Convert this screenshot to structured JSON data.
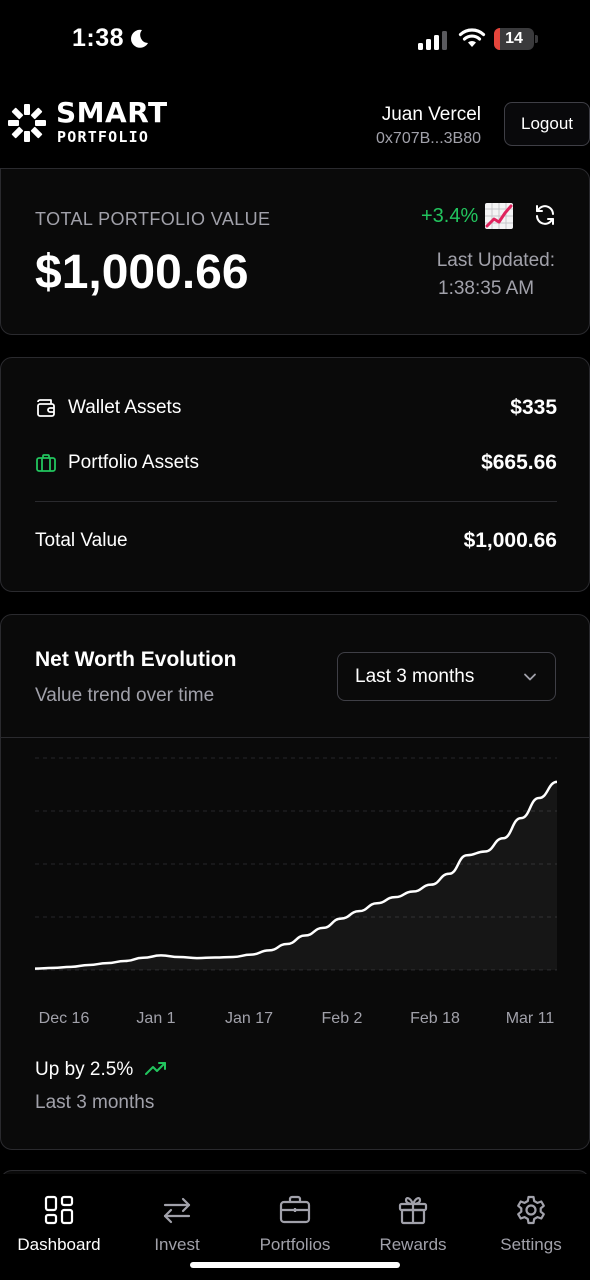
{
  "status_bar": {
    "time": "1:38",
    "battery_level": "14",
    "battery_fraction": 0.14,
    "battery_color": "#e5453b"
  },
  "header": {
    "logo_line1": "SMART",
    "logo_line2": "PORTFOLIO",
    "user_name": "Juan Vercel",
    "wallet_address": "0x707B...3B80",
    "logout_label": "Logout"
  },
  "portfolio_summary": {
    "label": "TOTAL PORTFOLIO VALUE",
    "value": "$1,000.66",
    "change": "+3.4%",
    "change_icon": "📈",
    "change_color": "#22c55e",
    "last_updated_label": "Last Updated:",
    "last_updated_time": "1:38:35 AM"
  },
  "assets": {
    "wallet": {
      "label": "Wallet Assets",
      "value": "$335",
      "icon": "wallet-icon"
    },
    "portfolio": {
      "label": "Portfolio Assets",
      "value": "$665.66",
      "icon": "briefcase-icon",
      "icon_color": "#22c55e"
    },
    "total": {
      "label": "Total Value",
      "value": "$1,000.66"
    }
  },
  "net_worth": {
    "title": "Net Worth Evolution",
    "subtitle": "Value trend over time",
    "range_selected": "Last 3 months",
    "trend_text": "Up by 2.5%",
    "trend_period": "Last 3 months",
    "trend_color": "#22c55e"
  },
  "chart_data": {
    "type": "area",
    "x_tick_labels": [
      "Dec 16",
      "Jan 1",
      "Jan 17",
      "Feb 2",
      "Feb 18",
      "Mar 11"
    ],
    "x": [
      "Dec 16",
      "Dec 19",
      "Dec 22",
      "Dec 25",
      "Dec 28",
      "Dec 31",
      "Jan 3",
      "Jan 6",
      "Jan 9",
      "Jan 12",
      "Jan 15",
      "Jan 18",
      "Jan 21",
      "Jan 24",
      "Jan 27",
      "Jan 30",
      "Feb 2",
      "Feb 5",
      "Feb 8",
      "Feb 11",
      "Feb 14",
      "Feb 17",
      "Feb 20",
      "Feb 23",
      "Feb 26",
      "Mar 1",
      "Mar 4",
      "Mar 7",
      "Mar 10",
      "Mar 13"
    ],
    "values": [
      0.5,
      0.8,
      1.2,
      1.9,
      2.6,
      3.4,
      4.6,
      5.5,
      4.9,
      4.5,
      4.7,
      4.9,
      5.8,
      7.4,
      9.8,
      13.0,
      15.9,
      19.4,
      22.2,
      25.2,
      27.5,
      29.6,
      32.2,
      36.3,
      43.3,
      44.7,
      49.7,
      57.3,
      64.9,
      71.0
    ],
    "ylim": [
      0,
      80
    ],
    "grid": true,
    "grid_style": "dashed horizontal",
    "legend": "none",
    "line_color": "#ffffff"
  },
  "bottom_nav": {
    "items": [
      {
        "label": "Dashboard",
        "icon": "dashboard-icon",
        "active": true
      },
      {
        "label": "Invest",
        "icon": "arrows-exchange-icon",
        "active": false
      },
      {
        "label": "Portfolios",
        "icon": "briefcase-icon",
        "active": false
      },
      {
        "label": "Rewards",
        "icon": "gift-icon",
        "active": false
      },
      {
        "label": "Settings",
        "icon": "gear-icon",
        "active": false
      }
    ]
  }
}
